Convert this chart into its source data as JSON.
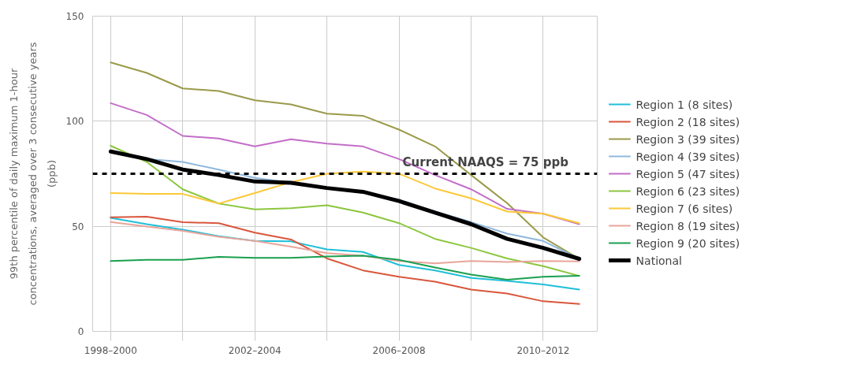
{
  "chart_data": {
    "type": "line",
    "ylabel": "99th percentile of daily maximum 1-hour concentrations, averaged over 3 consecutive years (ppb)",
    "categories": [
      "1998–2000",
      null,
      null,
      null,
      "2002–2004",
      null,
      null,
      null,
      "2006–2008",
      null,
      null,
      null,
      "2010–2012",
      null
    ],
    "ylim": [
      0,
      150
    ],
    "yticks": [
      0,
      50,
      100,
      150
    ],
    "grid": true,
    "legend": "right",
    "line_style": "solid",
    "marker": "none",
    "ref_lines": [
      {
        "axis": "y",
        "value": 75,
        "label": "Current NAAQS = 75 ppb",
        "color": "#000000",
        "line_style": "dashed"
      }
    ],
    "series": [
      {
        "name": "Region 1 (8 sites)",
        "color": "#1fbfd8",
        "values": [
          54,
          51,
          48.4,
          45.3,
          43,
          42.8,
          39,
          37.8,
          31.6,
          29,
          25.4,
          24,
          22.3,
          19.9
        ]
      },
      {
        "name": "Region 2 (18 sites)",
        "color": "#d9563c",
        "values": [
          54.3,
          54.6,
          51.9,
          51.5,
          47,
          43.7,
          34.7,
          29,
          26,
          23.6,
          19.9,
          18,
          14.3,
          13
        ]
      },
      {
        "name": "Region 3 (39 sites)",
        "color": "#9a9a4a",
        "values": [
          128,
          123,
          115.6,
          114.4,
          110,
          108,
          103.6,
          102.6,
          96,
          88,
          74.4,
          61,
          44.7,
          34.5
        ]
      },
      {
        "name": "Region 4 (39 sites)",
        "color": "#8fb8de",
        "values": [
          85.6,
          82,
          80.6,
          77,
          73,
          70.7,
          68,
          66,
          62.7,
          57,
          52,
          46.5,
          43,
          34.5
        ]
      },
      {
        "name": "Region 5 (47 sites)",
        "color": "#c36ec8",
        "values": [
          108.6,
          103,
          93,
          91.8,
          88,
          91.4,
          89.3,
          88,
          82,
          74.4,
          67.6,
          58.3,
          56,
          51
        ]
      },
      {
        "name": "Region 6 (23 sites)",
        "color": "#8cc63e",
        "values": [
          88.3,
          80.6,
          67.6,
          60.8,
          58,
          58.6,
          60,
          56.5,
          51.5,
          44,
          39.7,
          34.7,
          31,
          26.4
        ]
      },
      {
        "name": "Region 7 (6 sites)",
        "color": "#fcc837",
        "values": [
          65.8,
          65.4,
          65.4,
          60.8,
          65.8,
          71,
          75,
          76,
          75,
          68,
          63.3,
          57,
          56,
          51.5
        ]
      },
      {
        "name": "Region 8 (19 sites)",
        "color": "#e8a59a",
        "values": [
          52,
          49.9,
          47.8,
          45,
          43,
          40.3,
          37.2,
          36,
          33.5,
          32.3,
          33.5,
          33,
          33.5,
          33.3
        ]
      },
      {
        "name": "Region 9 (20 sites)",
        "color": "#1aa050",
        "values": [
          33.5,
          34,
          34,
          35.4,
          35,
          35,
          35.6,
          36,
          34,
          30.4,
          27,
          24.6,
          26,
          26.4
        ]
      },
      {
        "name": "National",
        "color": "#000000",
        "values": [
          85.6,
          82,
          77,
          74.4,
          71.3,
          70.7,
          68.2,
          66.4,
          62,
          56.5,
          51,
          44,
          39.7,
          34.5
        ]
      }
    ]
  }
}
